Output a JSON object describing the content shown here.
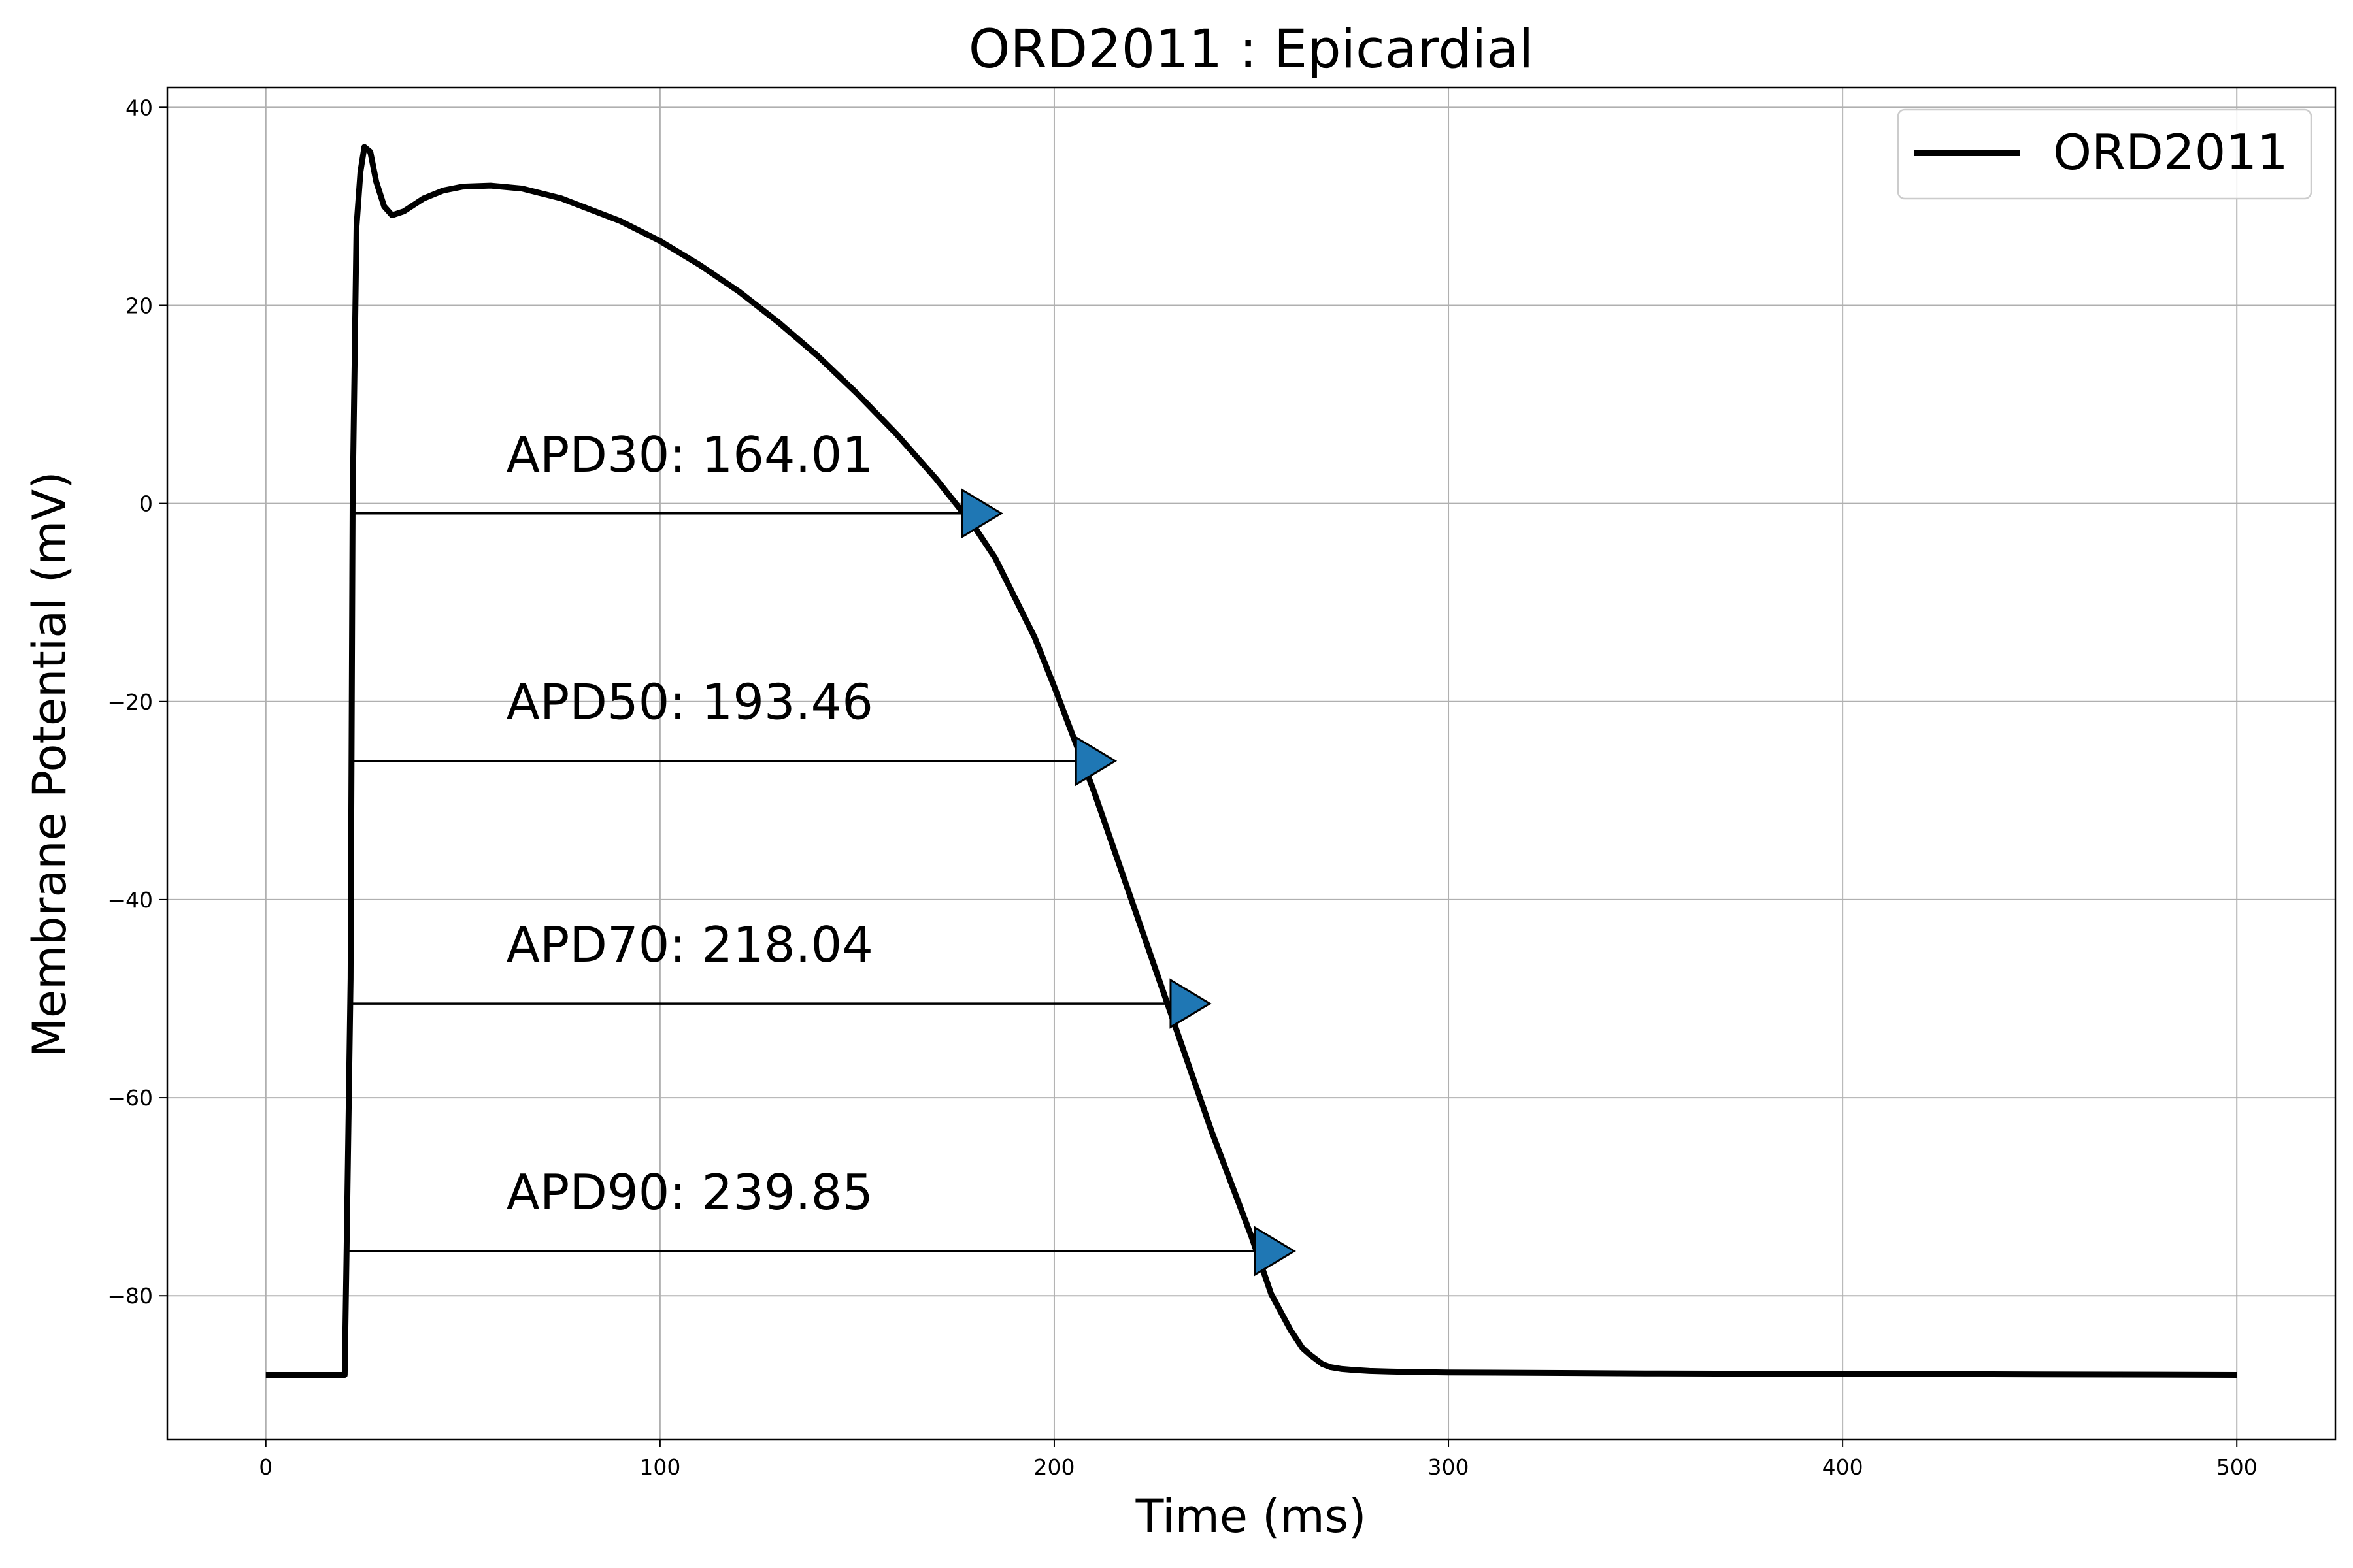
{
  "chart_data": {
    "type": "line",
    "title": "ORD2011 : Epicardial",
    "xlabel": "Time (ms)",
    "ylabel": "Membrane Potential (mV)",
    "xlim": [
      -25,
      525
    ],
    "ylim": [
      -94.5,
      42
    ],
    "x_ticks": [
      0,
      100,
      200,
      300,
      400,
      500
    ],
    "x_tick_labels": [
      "0",
      "100",
      "200",
      "300",
      "400",
      "500"
    ],
    "y_ticks": [
      40,
      20,
      0,
      -20,
      -40,
      -60,
      -80
    ],
    "y_tick_labels": [
      "40",
      "20",
      "0",
      "−20",
      "−40",
      "−60",
      "−80"
    ],
    "grid": true,
    "legend_position": "top-right",
    "series": [
      {
        "name": "ORD2011",
        "color": "#000000",
        "x": [
          0,
          20,
          20.5,
          21.5,
          22,
          23,
          24,
          25,
          26.5,
          28,
          30,
          32,
          35,
          40,
          45,
          50,
          57,
          65,
          75,
          90,
          100,
          110,
          120,
          130,
          140,
          150,
          160,
          170,
          180,
          185,
          190,
          195,
          200,
          210,
          220,
          230,
          240,
          250,
          255,
          260,
          263,
          265,
          268,
          270,
          273,
          276,
          280,
          285,
          290,
          300,
          350,
          400,
          450,
          500
        ],
        "y": [
          -88,
          -88,
          -75,
          -48,
          0,
          28,
          33.5,
          36,
          35.5,
          32.5,
          30,
          29.1,
          29.5,
          30.8,
          31.6,
          32,
          32.1,
          31.8,
          30.8,
          28.5,
          26.5,
          24.1,
          21.4,
          18.3,
          14.9,
          11.1,
          7.0,
          2.5,
          -2.5,
          -5.5,
          -9.5,
          -13.5,
          -18.5,
          -29,
          -40.5,
          -52,
          -63.5,
          -74,
          -79.8,
          -83.5,
          -85.3,
          -86,
          -86.9,
          -87.2,
          -87.4,
          -87.5,
          -87.6,
          -87.65,
          -87.7,
          -87.75,
          -87.85,
          -87.9,
          -87.95,
          -88
        ]
      }
    ],
    "apd_markers": [
      {
        "label": "APD30: 164.01",
        "start_x": 21.9,
        "end_x": 185.9,
        "y": -1
      },
      {
        "label": "APD50: 193.46",
        "start_x": 21.3,
        "end_x": 214.8,
        "y": -26
      },
      {
        "label": "APD70: 218.04",
        "start_x": 20.8,
        "end_x": 238.8,
        "y": -50.5
      },
      {
        "label": "APD90: 239.85",
        "start_x": 20.4,
        "end_x": 260.2,
        "y": -75.5
      }
    ],
    "marker_color": "#1f77b4"
  }
}
